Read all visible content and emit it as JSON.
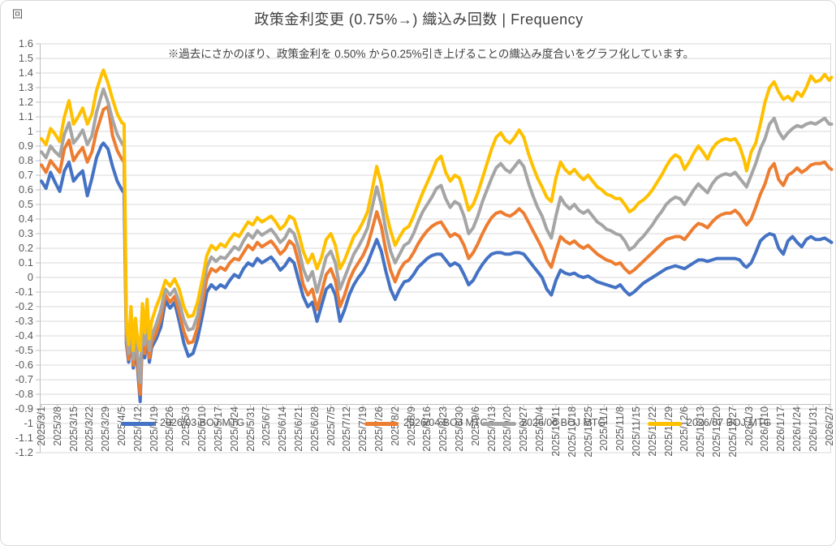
{
  "chart_data": {
    "type": "line",
    "title": "政策金利変更 (0.75%→) 織込み回数 | Frequency",
    "note": "※過去にさかのぼり、政策金利を 0.50% から0.25%引き上げることの織込み度合いをグラフ化しています。",
    "grid": true,
    "legend_position": "bottom",
    "y_axis": {
      "title": "回",
      "min": -1.2,
      "max": 1.6,
      "step": 0.1,
      "labels": [
        "1.6",
        "1.5",
        "1.4",
        "1.3",
        "1.2",
        "1.1",
        "1",
        "0.9",
        "0.8",
        "0.7",
        "0.6",
        "0.5",
        "0.4",
        "0.3",
        "0.2",
        "0.1",
        "0",
        "-0.1",
        "-0.2",
        "-0.3",
        "-0.4",
        "-0.5",
        "-0.6",
        "-0.7",
        "-0.8",
        "-0.9",
        "-1",
        "-1.1",
        "-1.2"
      ]
    },
    "x_axis": {
      "labels": [
        "2025/3/1",
        "2025/3/8",
        "2025/3/15",
        "2025/3/22",
        "2025/3/29",
        "2025/4/5",
        "2025/4/12",
        "2025/4/19",
        "2025/4/26",
        "2025/5/3",
        "2025/5/10",
        "2025/5/17",
        "2025/5/24",
        "2025/5/31",
        "2025/6/7",
        "2025/6/14",
        "2025/6/21",
        "2025/6/28",
        "2025/7/5",
        "2025/7/12",
        "2025/7/19",
        "2025/7/26",
        "2025/8/2",
        "2025/8/9",
        "2025/8/16",
        "2025/8/23",
        "2025/8/30",
        "2025/9/6",
        "2025/9/13",
        "2025/9/20",
        "2025/9/27",
        "2025/10/4",
        "2025/10/11",
        "2025/10/18",
        "2025/10/25",
        "2025/11/1",
        "2025/11/8",
        "2025/11/15",
        "2025/11/22",
        "2025/11/29",
        "2025/12/6",
        "2025/12/13",
        "2025/12/20",
        "2025/12/27",
        "2026/1/3",
        "2026/1/10",
        "2026/1/17",
        "2026/1/24",
        "2026/1/31",
        "2026/2/7"
      ]
    },
    "series": [
      {
        "name": "2026/03 BOJ MTG",
        "color": "#4472C4",
        "column": 1
      },
      {
        "name": "2026/04 BOJ MTG",
        "color": "#ED7D31",
        "column": 2
      },
      {
        "name": "2026/06 BOJ MTG",
        "color": "#A5A5A5",
        "column": 3
      },
      {
        "name": "2026/07 BOJ MTG",
        "color": "#FFC000",
        "column": 4
      }
    ],
    "points_format": [
      "day_index_from_2025/3/1",
      "2026/03 BOJ MTG",
      "2026/04 BOJ MTG",
      "2026/06 BOJ MTG",
      "2026/07 BOJ MTG"
    ],
    "points": [
      [
        0,
        0.66,
        0.77,
        0.86,
        0.95
      ],
      [
        2,
        0.61,
        0.72,
        0.82,
        0.91
      ],
      [
        4,
        0.72,
        0.8,
        0.9,
        1.02
      ],
      [
        6,
        0.65,
        0.76,
        0.86,
        0.98
      ],
      [
        8,
        0.59,
        0.72,
        0.83,
        0.93
      ],
      [
        10,
        0.73,
        0.88,
        0.98,
        1.1
      ],
      [
        12,
        0.79,
        0.94,
        1.06,
        1.21
      ],
      [
        14,
        0.66,
        0.8,
        0.92,
        1.05
      ],
      [
        16,
        0.7,
        0.85,
        0.96,
        1.1
      ],
      [
        18,
        0.73,
        0.89,
        1.01,
        1.16
      ],
      [
        20,
        0.56,
        0.79,
        0.91,
        1.05
      ],
      [
        22,
        0.68,
        0.86,
        0.97,
        1.12
      ],
      [
        24,
        0.82,
        1.0,
        1.13,
        1.28
      ],
      [
        26,
        0.9,
        1.1,
        1.24,
        1.38
      ],
      [
        27,
        0.92,
        1.15,
        1.29,
        1.42
      ],
      [
        29,
        0.88,
        1.17,
        1.2,
        1.33
      ],
      [
        31,
        0.76,
        0.97,
        1.08,
        1.22
      ],
      [
        33,
        0.66,
        0.87,
        0.98,
        1.12
      ],
      [
        35,
        0.6,
        0.81,
        0.92,
        1.06
      ],
      [
        36,
        0.58,
        0.79,
        0.9,
        1.05
      ],
      [
        37,
        -0.45,
        -0.42,
        -0.38,
        -0.3
      ],
      [
        38,
        -0.58,
        -0.56,
        -0.52,
        -0.46
      ],
      [
        39,
        -0.4,
        -0.36,
        -0.3,
        -0.2
      ],
      [
        40,
        -0.62,
        -0.6,
        -0.56,
        -0.5
      ],
      [
        41,
        -0.48,
        -0.44,
        -0.38,
        -0.28
      ],
      [
        42,
        -0.65,
        -0.62,
        -0.56,
        -0.45
      ],
      [
        43,
        -0.85,
        -0.8,
        -0.72,
        -0.5
      ],
      [
        44,
        -0.4,
        -0.36,
        -0.3,
        -0.18
      ],
      [
        45,
        -0.55,
        -0.52,
        -0.46,
        -0.38
      ],
      [
        46,
        -0.38,
        -0.34,
        -0.28,
        -0.15
      ],
      [
        47,
        -0.58,
        -0.55,
        -0.5,
        -0.42
      ],
      [
        48,
        -0.48,
        -0.45,
        -0.4,
        -0.3
      ],
      [
        50,
        -0.42,
        -0.38,
        -0.32,
        -0.2
      ],
      [
        52,
        -0.34,
        -0.28,
        -0.22,
        -0.12
      ],
      [
        54,
        -0.16,
        -0.12,
        -0.08,
        -0.02
      ],
      [
        56,
        -0.21,
        -0.17,
        -0.12,
        -0.06
      ],
      [
        58,
        -0.17,
        -0.13,
        -0.08,
        -0.01
      ],
      [
        60,
        -0.3,
        -0.24,
        -0.17,
        -0.08
      ],
      [
        62,
        -0.45,
        -0.37,
        -0.29,
        -0.2
      ],
      [
        64,
        -0.54,
        -0.45,
        -0.36,
        -0.27
      ],
      [
        66,
        -0.52,
        -0.44,
        -0.35,
        -0.26
      ],
      [
        68,
        -0.42,
        -0.34,
        -0.26,
        -0.17
      ],
      [
        70,
        -0.27,
        -0.18,
        -0.1,
        -0.02
      ],
      [
        72,
        -0.1,
        -0.01,
        0.07,
        0.15
      ],
      [
        74,
        -0.05,
        0.06,
        0.14,
        0.22
      ],
      [
        76,
        -0.08,
        0.04,
        0.11,
        0.19
      ],
      [
        78,
        -0.05,
        0.07,
        0.14,
        0.23
      ],
      [
        80,
        -0.07,
        0.05,
        0.13,
        0.21
      ],
      [
        82,
        -0.02,
        0.1,
        0.17,
        0.26
      ],
      [
        84,
        0.02,
        0.13,
        0.21,
        0.3
      ],
      [
        86,
        0.0,
        0.12,
        0.19,
        0.28
      ],
      [
        88,
        0.06,
        0.17,
        0.25,
        0.33
      ],
      [
        90,
        0.1,
        0.22,
        0.3,
        0.38
      ],
      [
        92,
        0.08,
        0.19,
        0.27,
        0.36
      ],
      [
        94,
        0.13,
        0.24,
        0.32,
        0.41
      ],
      [
        96,
        0.1,
        0.21,
        0.29,
        0.38
      ],
      [
        98,
        0.12,
        0.23,
        0.31,
        0.4
      ],
      [
        100,
        0.14,
        0.25,
        0.33,
        0.42
      ],
      [
        102,
        0.1,
        0.21,
        0.29,
        0.38
      ],
      [
        104,
        0.05,
        0.16,
        0.24,
        0.33
      ],
      [
        106,
        0.08,
        0.19,
        0.27,
        0.36
      ],
      [
        108,
        0.13,
        0.25,
        0.33,
        0.42
      ],
      [
        110,
        0.1,
        0.22,
        0.3,
        0.4
      ],
      [
        112,
        -0.02,
        0.1,
        0.2,
        0.3
      ],
      [
        114,
        -0.13,
        -0.05,
        0.06,
        0.18
      ],
      [
        116,
        -0.2,
        -0.12,
        -0.02,
        0.1
      ],
      [
        118,
        -0.17,
        -0.08,
        0.04,
        0.16
      ],
      [
        120,
        -0.3,
        -0.22,
        -0.1,
        0.06
      ],
      [
        122,
        -0.19,
        -0.1,
        0.02,
        0.14
      ],
      [
        124,
        -0.08,
        0.02,
        0.14,
        0.26
      ],
      [
        126,
        -0.05,
        0.06,
        0.18,
        0.3
      ],
      [
        128,
        -0.12,
        -0.02,
        0.1,
        0.22
      ],
      [
        130,
        -0.3,
        -0.2,
        -0.08,
        0.06
      ],
      [
        132,
        -0.22,
        -0.12,
        0.0,
        0.12
      ],
      [
        134,
        -0.12,
        -0.02,
        0.08,
        0.2
      ],
      [
        136,
        -0.05,
        0.05,
        0.16,
        0.28
      ],
      [
        138,
        0.0,
        0.1,
        0.21,
        0.32
      ],
      [
        140,
        0.04,
        0.15,
        0.27,
        0.38
      ],
      [
        142,
        0.1,
        0.22,
        0.34,
        0.45
      ],
      [
        144,
        0.18,
        0.33,
        0.48,
        0.6
      ],
      [
        146,
        0.26,
        0.45,
        0.62,
        0.76
      ],
      [
        148,
        0.18,
        0.35,
        0.5,
        0.64
      ],
      [
        150,
        0.04,
        0.18,
        0.32,
        0.45
      ],
      [
        152,
        -0.08,
        0.05,
        0.18,
        0.32
      ],
      [
        154,
        -0.15,
        -0.03,
        0.1,
        0.22
      ],
      [
        156,
        -0.08,
        0.05,
        0.16,
        0.28
      ],
      [
        158,
        -0.03,
        0.1,
        0.22,
        0.33
      ],
      [
        160,
        -0.02,
        0.12,
        0.24,
        0.35
      ],
      [
        162,
        0.02,
        0.17,
        0.3,
        0.42
      ],
      [
        164,
        0.07,
        0.23,
        0.38,
        0.5
      ],
      [
        166,
        0.1,
        0.28,
        0.45,
        0.58
      ],
      [
        168,
        0.13,
        0.32,
        0.5,
        0.65
      ],
      [
        170,
        0.15,
        0.35,
        0.55,
        0.72
      ],
      [
        172,
        0.16,
        0.37,
        0.61,
        0.8
      ],
      [
        174,
        0.16,
        0.38,
        0.63,
        0.83
      ],
      [
        176,
        0.12,
        0.33,
        0.54,
        0.72
      ],
      [
        178,
        0.08,
        0.28,
        0.48,
        0.66
      ],
      [
        180,
        0.1,
        0.3,
        0.52,
        0.7
      ],
      [
        182,
        0.08,
        0.28,
        0.5,
        0.68
      ],
      [
        184,
        0.02,
        0.22,
        0.42,
        0.58
      ],
      [
        186,
        -0.05,
        0.13,
        0.3,
        0.46
      ],
      [
        188,
        -0.02,
        0.17,
        0.34,
        0.5
      ],
      [
        190,
        0.04,
        0.23,
        0.42,
        0.58
      ],
      [
        192,
        0.09,
        0.3,
        0.52,
        0.68
      ],
      [
        194,
        0.13,
        0.36,
        0.6,
        0.78
      ],
      [
        196,
        0.16,
        0.41,
        0.68,
        0.88
      ],
      [
        198,
        0.17,
        0.44,
        0.75,
        0.96
      ],
      [
        200,
        0.17,
        0.45,
        0.78,
        0.99
      ],
      [
        202,
        0.16,
        0.43,
        0.74,
        0.94
      ],
      [
        204,
        0.16,
        0.42,
        0.72,
        0.92
      ],
      [
        206,
        0.17,
        0.44,
        0.76,
        0.96
      ],
      [
        208,
        0.17,
        0.47,
        0.8,
        1.01
      ],
      [
        210,
        0.16,
        0.44,
        0.76,
        0.96
      ],
      [
        212,
        0.12,
        0.38,
        0.65,
        0.85
      ],
      [
        214,
        0.08,
        0.32,
        0.56,
        0.76
      ],
      [
        216,
        0.04,
        0.26,
        0.48,
        0.68
      ],
      [
        218,
        0.0,
        0.2,
        0.42,
        0.62
      ],
      [
        220,
        -0.08,
        0.12,
        0.33,
        0.55
      ],
      [
        222,
        -0.12,
        0.07,
        0.27,
        0.52
      ],
      [
        224,
        -0.02,
        0.18,
        0.42,
        0.68
      ],
      [
        226,
        0.05,
        0.28,
        0.55,
        0.79
      ],
      [
        228,
        0.03,
        0.25,
        0.5,
        0.74
      ],
      [
        230,
        0.02,
        0.23,
        0.47,
        0.71
      ],
      [
        232,
        0.03,
        0.25,
        0.5,
        0.74
      ],
      [
        234,
        0.01,
        0.22,
        0.46,
        0.7
      ],
      [
        236,
        0.0,
        0.2,
        0.44,
        0.67
      ],
      [
        238,
        0.01,
        0.22,
        0.46,
        0.7
      ],
      [
        240,
        -0.01,
        0.19,
        0.42,
        0.66
      ],
      [
        242,
        -0.03,
        0.16,
        0.38,
        0.62
      ],
      [
        244,
        -0.04,
        0.14,
        0.36,
        0.6
      ],
      [
        246,
        -0.05,
        0.12,
        0.33,
        0.57
      ],
      [
        248,
        -0.06,
        0.11,
        0.32,
        0.56
      ],
      [
        250,
        -0.07,
        0.09,
        0.3,
        0.54
      ],
      [
        252,
        -0.05,
        0.1,
        0.29,
        0.54
      ],
      [
        254,
        -0.09,
        0.06,
        0.25,
        0.5
      ],
      [
        256,
        -0.12,
        0.03,
        0.19,
        0.45
      ],
      [
        258,
        -0.1,
        0.05,
        0.21,
        0.47
      ],
      [
        260,
        -0.07,
        0.08,
        0.25,
        0.51
      ],
      [
        262,
        -0.04,
        0.11,
        0.28,
        0.53
      ],
      [
        264,
        -0.02,
        0.14,
        0.32,
        0.56
      ],
      [
        266,
        0.0,
        0.17,
        0.36,
        0.6
      ],
      [
        268,
        0.02,
        0.2,
        0.41,
        0.65
      ],
      [
        270,
        0.04,
        0.23,
        0.45,
        0.7
      ],
      [
        272,
        0.06,
        0.26,
        0.5,
        0.76
      ],
      [
        274,
        0.07,
        0.27,
        0.53,
        0.81
      ],
      [
        276,
        0.08,
        0.28,
        0.55,
        0.84
      ],
      [
        278,
        0.07,
        0.28,
        0.54,
        0.82
      ],
      [
        280,
        0.06,
        0.26,
        0.5,
        0.74
      ],
      [
        282,
        0.08,
        0.3,
        0.55,
        0.79
      ],
      [
        284,
        0.1,
        0.34,
        0.6,
        0.85
      ],
      [
        286,
        0.12,
        0.37,
        0.64,
        0.9
      ],
      [
        288,
        0.12,
        0.36,
        0.61,
        0.86
      ],
      [
        290,
        0.11,
        0.34,
        0.58,
        0.81
      ],
      [
        292,
        0.12,
        0.38,
        0.64,
        0.88
      ],
      [
        294,
        0.13,
        0.41,
        0.68,
        0.92
      ],
      [
        296,
        0.13,
        0.43,
        0.7,
        0.94
      ],
      [
        298,
        0.13,
        0.44,
        0.71,
        0.95
      ],
      [
        300,
        0.13,
        0.44,
        0.7,
        0.94
      ],
      [
        302,
        0.13,
        0.46,
        0.72,
        0.95
      ],
      [
        304,
        0.12,
        0.43,
        0.68,
        0.9
      ],
      [
        306,
        0.08,
        0.38,
        0.64,
        0.8
      ],
      [
        307,
        0.07,
        0.36,
        0.62,
        0.73
      ],
      [
        309,
        0.1,
        0.4,
        0.7,
        0.86
      ],
      [
        311,
        0.17,
        0.48,
        0.78,
        0.92
      ],
      [
        313,
        0.25,
        0.57,
        0.88,
        1.05
      ],
      [
        315,
        0.28,
        0.64,
        0.95,
        1.2
      ],
      [
        317,
        0.3,
        0.74,
        1.05,
        1.3
      ],
      [
        319,
        0.29,
        0.78,
        1.09,
        1.34
      ],
      [
        321,
        0.2,
        0.67,
        1.0,
        1.27
      ],
      [
        323,
        0.16,
        0.63,
        0.95,
        1.22
      ],
      [
        325,
        0.25,
        0.7,
        0.99,
        1.24
      ],
      [
        327,
        0.28,
        0.72,
        1.02,
        1.21
      ],
      [
        329,
        0.24,
        0.75,
        1.04,
        1.27
      ],
      [
        331,
        0.21,
        0.72,
        1.03,
        1.24
      ],
      [
        333,
        0.26,
        0.74,
        1.05,
        1.3
      ],
      [
        335,
        0.28,
        0.77,
        1.06,
        1.38
      ],
      [
        337,
        0.26,
        0.78,
        1.05,
        1.34
      ],
      [
        339,
        0.26,
        0.78,
        1.07,
        1.35
      ],
      [
        341,
        0.27,
        0.79,
        1.09,
        1.39
      ],
      [
        343,
        0.25,
        0.75,
        1.05,
        1.35
      ],
      [
        344,
        0.24,
        0.74,
        1.05,
        1.37
      ]
    ],
    "colors": {
      "gridline": "#D9D9D9",
      "axis": "#BFBFBF",
      "tick_text": "#595959",
      "title_text": "#404040"
    }
  }
}
